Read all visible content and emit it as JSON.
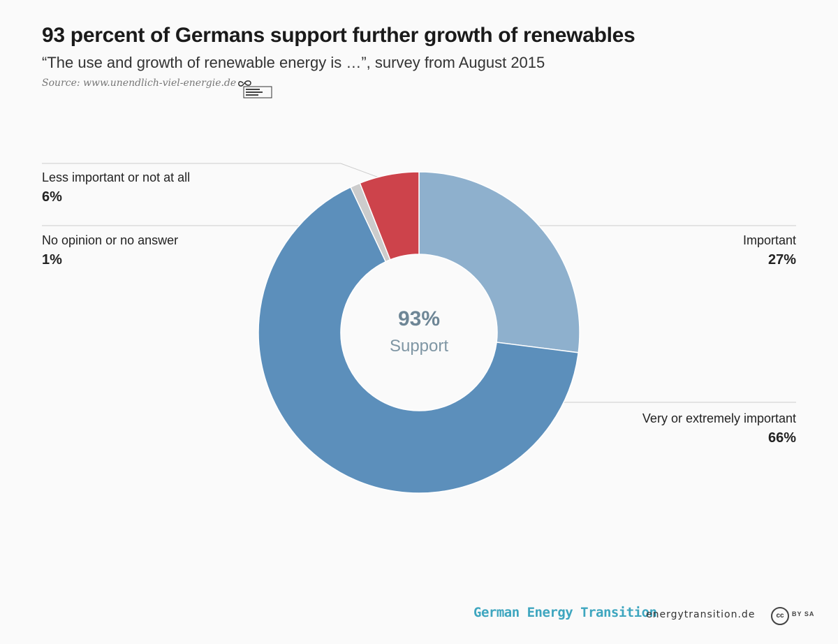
{
  "header": {
    "title": "93 percent of Germans support further growth of renewables",
    "subtitle": "“The use and growth of renewable energy is …”, survey from August 2015",
    "source": "Source: www.unendlich-viel-energie.de"
  },
  "center": {
    "value": "93%",
    "label": "Support"
  },
  "footer": {
    "brand": "German Energy Transition",
    "site": "energytransition.de",
    "cc": "cc",
    "license": "BY SA"
  },
  "colors": {
    "important": "#8eb0cd",
    "very_important": "#5c8fbb",
    "no_opinion": "#cccccc",
    "less_important": "#cd434b",
    "leader": "#cccccc"
  },
  "chart_data": {
    "type": "pie",
    "donut": true,
    "categories": [
      "Important",
      "Very or extremely important",
      "No opinion or no answer",
      "Less important or not at all"
    ],
    "values": [
      27,
      66,
      1,
      6
    ],
    "value_labels": [
      "27%",
      "66%",
      "1%",
      "6%"
    ],
    "start": "12 o'clock",
    "direction": "clockwise"
  }
}
